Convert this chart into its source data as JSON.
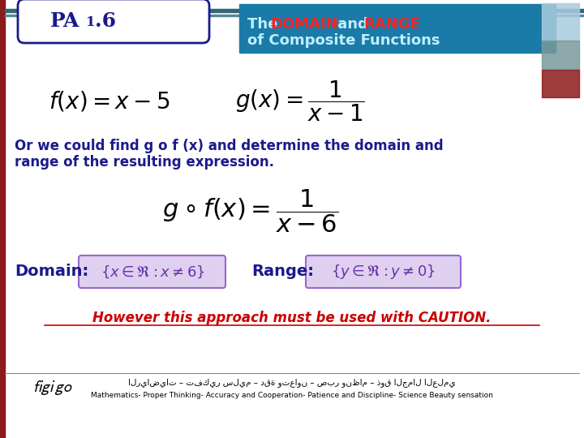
{
  "bg_color": "#f0f0f0",
  "slide_bg": "#ffffff",
  "title_bg": "#1a7ba8",
  "title_text_white": "The ",
  "title_domain": "DOMAIN",
  "title_and": " and ",
  "title_range": "RANGE",
  "title_line2": "of Composite Functions",
  "title_color_white": "#c0eeff",
  "title_color_domain": "#ff2222",
  "title_color_range": "#ff2222",
  "pa_label": "PA",
  "pa_sub": "1",
  "pa_dot6": ".6",
  "pa_label_color": "#1a1a8c",
  "body_text_color": "#1a1a8c",
  "caution_text_color": "#cc0000",
  "domain_range_box_color": "#e0d0f0",
  "domain_range_border_color": "#9966cc",
  "footer_text": "Mathematics- Proper Thinking- Accuracy and Cooperation- Patience and Discipline- Science Beauty sensation",
  "footer_arabic": "الرياضيات – تفكير سليم – دقة وتعاون – صبر ونظام – ذوق الجمال العلمي",
  "deco_colors": [
    "#aaccdd",
    "#7a9a9a",
    "#8b1a1a"
  ],
  "left_bar_color": "#8b1a1a"
}
